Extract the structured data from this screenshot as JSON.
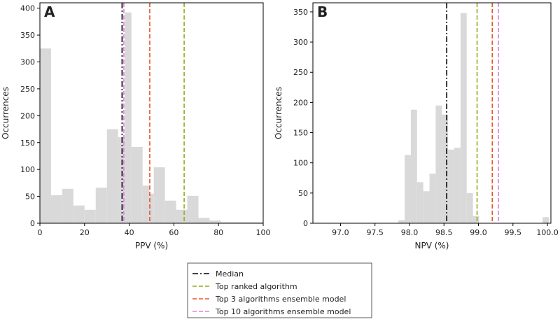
{
  "legend": {
    "entries": [
      {
        "label": "Median",
        "color": "#000000",
        "dash": "dashdot"
      },
      {
        "label": "Top ranked algorithm",
        "color": "#9aa81a",
        "dash": "dashed"
      },
      {
        "label": "Top 3 algorithms ensemble model",
        "color": "#e8552a",
        "dash": "dashed"
      },
      {
        "label": "Top 10 algorithms ensemble model",
        "color": "#e27fe0",
        "dash": "dashed"
      }
    ],
    "placement": "bottom-center"
  },
  "chart_data": [
    {
      "type": "bar",
      "panel_label": "A",
      "xlabel": "PPV (%)",
      "ylabel": "Occurrences",
      "xlim": [
        0,
        100
      ],
      "ylim": [
        0,
        410
      ],
      "xticks": [
        0,
        20,
        40,
        60,
        80,
        100
      ],
      "yticks": [
        0,
        50,
        100,
        150,
        200,
        250,
        300,
        350,
        400
      ],
      "bar_color": "#d9d9d9",
      "bins": [
        {
          "x0": 0,
          "x1": 5,
          "value": 325
        },
        {
          "x0": 5,
          "x1": 10,
          "value": 52
        },
        {
          "x0": 10,
          "x1": 15,
          "value": 64
        },
        {
          "x0": 15,
          "x1": 20,
          "value": 33
        },
        {
          "x0": 20,
          "x1": 25,
          "value": 25
        },
        {
          "x0": 25,
          "x1": 30,
          "value": 66
        },
        {
          "x0": 30,
          "x1": 35,
          "value": 175
        },
        {
          "x0": 35,
          "x1": 38,
          "value": 160
        },
        {
          "x0": 38,
          "x1": 41,
          "value": 392
        },
        {
          "x0": 41,
          "x1": 46,
          "value": 142
        },
        {
          "x0": 46,
          "x1": 49,
          "value": 70
        },
        {
          "x0": 49,
          "x1": 51,
          "value": 55
        },
        {
          "x0": 51,
          "x1": 56,
          "value": 104
        },
        {
          "x0": 56,
          "x1": 61,
          "value": 42
        },
        {
          "x0": 61,
          "x1": 64,
          "value": 25
        },
        {
          "x0": 64,
          "x1": 66,
          "value": 25
        },
        {
          "x0": 66,
          "x1": 71,
          "value": 51
        },
        {
          "x0": 71,
          "x1": 76,
          "value": 10
        },
        {
          "x0": 76,
          "x1": 81,
          "value": 5
        },
        {
          "x0": 81,
          "x1": 86,
          "value": 2
        },
        {
          "x0": 86,
          "x1": 92,
          "value": 2
        },
        {
          "x0": 92,
          "x1": 100,
          "value": 2
        }
      ],
      "vlines": [
        {
          "name": "Median",
          "x": 36.8,
          "color": "#000000",
          "dash": "dashdot"
        },
        {
          "name": "Top 10 algorithms ensemble model",
          "x": 37.6,
          "color": "#e27fe0",
          "dash": "dashed"
        },
        {
          "name": "Top 3 algorithms ensemble model",
          "x": 49.2,
          "color": "#e8552a",
          "dash": "dashed"
        },
        {
          "name": "Top ranked algorithm",
          "x": 64.6,
          "color": "#9aa81a",
          "dash": "dashed"
        }
      ]
    },
    {
      "type": "bar",
      "panel_label": "B",
      "xlabel": "NPV (%)",
      "ylabel": "Occurrences",
      "xlim": [
        96.6,
        100.05
      ],
      "ylim": [
        0,
        365
      ],
      "xticks": [
        97.0,
        97.5,
        98.0,
        98.5,
        99.0,
        99.5,
        100.0
      ],
      "xtick_labels": [
        "97.0",
        "97.5",
        "98.0",
        "98.5",
        "99.0",
        "99.5",
        "100.0"
      ],
      "yticks": [
        0,
        50,
        100,
        150,
        200,
        250,
        300,
        350
      ],
      "bar_color": "#d9d9d9",
      "bins": [
        {
          "x0": 97.84,
          "x1": 97.93,
          "value": 5
        },
        {
          "x0": 97.93,
          "x1": 98.02,
          "value": 113
        },
        {
          "x0": 98.02,
          "x1": 98.11,
          "value": 188
        },
        {
          "x0": 98.11,
          "x1": 98.2,
          "value": 68
        },
        {
          "x0": 98.2,
          "x1": 98.29,
          "value": 53
        },
        {
          "x0": 98.29,
          "x1": 98.38,
          "value": 82
        },
        {
          "x0": 98.38,
          "x1": 98.47,
          "value": 195
        },
        {
          "x0": 98.47,
          "x1": 98.56,
          "value": 180
        },
        {
          "x0": 98.56,
          "x1": 98.65,
          "value": 122
        },
        {
          "x0": 98.65,
          "x1": 98.74,
          "value": 125
        },
        {
          "x0": 98.74,
          "x1": 98.83,
          "value": 348
        },
        {
          "x0": 98.83,
          "x1": 98.92,
          "value": 50
        },
        {
          "x0": 98.92,
          "x1": 99.01,
          "value": 12
        },
        {
          "x0": 99.93,
          "x1": 100.02,
          "value": 10
        }
      ],
      "vlines": [
        {
          "name": "Median",
          "x": 98.54,
          "color": "#000000",
          "dash": "dashdot"
        },
        {
          "name": "Top ranked algorithm",
          "x": 98.98,
          "color": "#9aa81a",
          "dash": "dashed"
        },
        {
          "name": "Top 3 algorithms ensemble model",
          "x": 99.2,
          "color": "#e8552a",
          "dash": "dashed"
        },
        {
          "name": "Top 10 algorithms ensemble model",
          "x": 99.29,
          "color": "#e27fe0",
          "dash": "dashed"
        }
      ]
    }
  ]
}
